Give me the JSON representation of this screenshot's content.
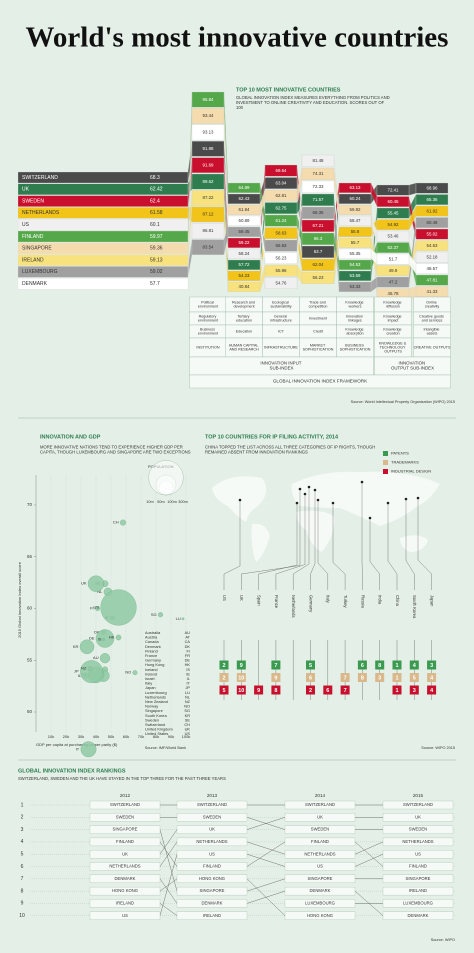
{
  "title": "World's most innovative countries",
  "index_chart": {
    "heading": "TOP 10 MOST INNOVATIVE COUNTRIES",
    "subheading": "GLOBAL INNOVATION INDEX MEASURES EVERYTHING FROM POLITICS AND INVESTMENT TO ONLINE CREATIVITY AND EDUCATION. SCORES OUT OF 100",
    "countries": [
      {
        "name": "SWITZERLAND",
        "score": 68.3,
        "color": "#4a4a4a"
      },
      {
        "name": "UK",
        "score": 62.42,
        "color": "#2f7d4f"
      },
      {
        "name": "SWEDEN",
        "score": 62.4,
        "color": "#c8102e"
      },
      {
        "name": "NETHERLANDS",
        "score": 61.58,
        "color": "#f2c318"
      },
      {
        "name": "US",
        "score": 60.1,
        "color": "#f0f0f0"
      },
      {
        "name": "FINLAND",
        "score": 59.97,
        "color": "#55a84a"
      },
      {
        "name": "SINGAPORE",
        "score": 59.36,
        "color": "#f4dcae"
      },
      {
        "name": "IRELAND",
        "score": 59.13,
        "color": "#f7e27e"
      },
      {
        "name": "LUXEMBOURG",
        "score": 59.02,
        "color": "#a0a0a0"
      },
      {
        "name": "DENMARK",
        "score": 57.7,
        "color": "#ffffff"
      }
    ],
    "pillars": [
      {
        "name": "INSTITUTION",
        "components": [
          "Political environment",
          "Regulatory environment",
          "Business environment"
        ],
        "values": [
          91.88,
          89.62,
          91.69,
          87.12,
          86.81,
          95.84,
          93.44,
          87.22,
          83.54,
          93.13
        ]
      },
      {
        "name": "HUMAN CAPITAL AND RESEARCH",
        "components": [
          "Research and development",
          "Tertiary education",
          "Education"
        ],
        "values": [
          62.43,
          57.72,
          59.22,
          54.23,
          58.24,
          64.89,
          61.94,
          40.84,
          59.45,
          60.89
        ]
      },
      {
        "name": "INFRASTRUCTURE",
        "components": [
          "Ecological sustainability",
          "General infrastructure",
          "ICT"
        ],
        "values": [
          63.04,
          62.75,
          69.54,
          58.63,
          54.76,
          61.24,
          62.81,
          55.96,
          56.93,
          56.23
        ]
      },
      {
        "name": "MARKET SOPHISTICATION",
        "components": [
          "Trade and competition",
          "Investment",
          "Credit"
        ],
        "values": [
          63.7,
          71.57,
          67.21,
          62.04,
          81.48,
          66.3,
          74.31,
          56.23,
          68.35,
          72.33
        ]
      },
      {
        "name": "BUSINESS SOPHISTICATION",
        "components": [
          "Knowledge workers",
          "Innovation linkages",
          "Knowledge absorption"
        ],
        "values": [
          60.24,
          53.59,
          63.13,
          55.8,
          58.47,
          54.53,
          59.82,
          55.7,
          53.33,
          55.35
        ]
      },
      {
        "name": "KNOWLEDGE & TECHNOLOGY OUTPUTS",
        "components": [
          "Knowledge diffusion",
          "Knowledge impact",
          "Knowledge creation"
        ],
        "values": [
          72.41,
          55.45,
          60.45,
          54.92,
          53.46,
          52.37,
          45.78,
          49.9,
          47.2,
          51.7
        ]
      },
      {
        "name": "CREATIVE OUTPUTS",
        "components": [
          "Online creativity",
          "Creative goods and services",
          "Intangible assets"
        ],
        "values": [
          68.96,
          65.36,
          55.02,
          61.92,
          52.18,
          47.81,
          41.33,
          54.63,
          60.48,
          48.57
        ]
      }
    ],
    "sub_indices": [
      "INNOVATION INPUT SUB-INDEX",
      "INNOVATION OUTPUT SUB-INDEX"
    ],
    "framework": "GLOBAL INNOVATION INDEX FRAMEWORK",
    "source": "Source: World Intellectual Property Organization (WIPO) 2015"
  },
  "gdp_chart": {
    "type": "scatter",
    "heading": "INNOVATION AND GDP",
    "subheading": "MORE INNOVATIVE NATIONS TEND TO EXPERIENCE HIGHER GDP PER CAPITA, THOUGH LUXEMBOURG AND SINGAPORE ARE TWO EXCEPTIONS",
    "x_label": "GDP per capita at purchasing power parity ($)",
    "y_label": "2015 Global Innovation Index overall score",
    "xlim": [
      0,
      100000
    ],
    "xticks": [
      {
        "value": 10000,
        "label": "10k"
      },
      {
        "value": 20000,
        "label": "20k"
      },
      {
        "value": 30000,
        "label": "30k"
      },
      {
        "value": 40000,
        "label": "40k"
      },
      {
        "value": 50000,
        "label": "50k"
      },
      {
        "value": 60000,
        "label": "60k"
      },
      {
        "value": 70000,
        "label": "70k"
      },
      {
        "value": 80000,
        "label": "80k"
      },
      {
        "value": 90000,
        "label": "90k"
      },
      {
        "value": 100000,
        "label": "100k"
      }
    ],
    "ylim": [
      50,
      70
    ],
    "yticks": [
      50,
      55,
      60,
      65,
      70
    ],
    "color": "#8fc9a3",
    "countries": [
      {
        "name": "Australia",
        "code": "AU",
        "gdp": 46000,
        "score": 55.2,
        "population": 24
      },
      {
        "name": "Austria",
        "code": "AT",
        "gdp": 46000,
        "score": 54.1,
        "population": 8.5
      },
      {
        "name": "Canada",
        "code": "CA",
        "gdp": 45000,
        "score": 53.5,
        "population": 35
      },
      {
        "name": "Denmark",
        "code": "DK",
        "gdp": 45000,
        "score": 57.7,
        "population": 5.6
      },
      {
        "name": "Finland",
        "code": "FI",
        "gdp": 41000,
        "score": 60,
        "population": 5.5
      },
      {
        "name": "France",
        "code": "FR",
        "gdp": 40000,
        "score": 53.6,
        "population": 66
      },
      {
        "name": "Germany",
        "code": "DE",
        "gdp": 46000,
        "score": 57.1,
        "population": 81
      },
      {
        "name": "Hong Kong",
        "code": "HK",
        "gdp": 55000,
        "score": 57.2,
        "population": 7
      },
      {
        "name": "Iceland",
        "code": "IS",
        "gdp": 45000,
        "score": 57,
        "population": 0.3
      },
      {
        "name": "Ireland",
        "code": "IE",
        "gdp": 51000,
        "score": 59.1,
        "population": 4.6
      },
      {
        "name": "Israel",
        "code": "IL",
        "gdp": 33000,
        "score": 53.5,
        "population": 8
      },
      {
        "name": "Italy",
        "code": "IT",
        "gdp": 35000,
        "score": 46.4,
        "population": 60
      },
      {
        "name": "Japan",
        "code": "JP",
        "gdp": 37000,
        "score": 53.9,
        "population": 127
      },
      {
        "name": "Luxembourg",
        "code": "LU",
        "gdp": 98000,
        "score": 59,
        "population": 0.5
      },
      {
        "name": "Netherlands",
        "code": "NL",
        "gdp": 48000,
        "score": 61.6,
        "population": 17
      },
      {
        "name": "New Zealand",
        "code": "NZ",
        "gdp": 36000,
        "score": 54.2,
        "population": 4.5
      },
      {
        "name": "Norway",
        "code": "NO",
        "gdp": 66000,
        "score": 53.8,
        "population": 5
      },
      {
        "name": "Singapore",
        "code": "SG",
        "gdp": 83000,
        "score": 59.4,
        "population": 5.5
      },
      {
        "name": "South Korea",
        "code": "KR",
        "gdp": 34000,
        "score": 56.3,
        "population": 50
      },
      {
        "name": "Sweden",
        "code": "SE",
        "gdp": 46000,
        "score": 62.4,
        "population": 10
      },
      {
        "name": "Switzerland",
        "code": "CH",
        "gdp": 58000,
        "score": 68.3,
        "population": 8
      },
      {
        "name": "United Kingdom",
        "code": "UK",
        "gdp": 40000,
        "score": 62.4,
        "population": 64
      },
      {
        "name": "United States",
        "code": "US",
        "gdp": 55000,
        "score": 60.1,
        "population": 320
      }
    ],
    "population_legend": {
      "title": "POPULATION",
      "sizes": [
        {
          "value": 10,
          "label": "10m"
        },
        {
          "value": 50,
          "label": "50m"
        },
        {
          "value": 100,
          "label": "100m"
        },
        {
          "value": 300,
          "label": "300m"
        }
      ]
    },
    "source": "Source: IMF/World Bank"
  },
  "ip_chart": {
    "heading": "TOP 10 COUNTRIES FOR IP FILING ACTIVITY, 2014",
    "subheading": "CHINA TOPPED THE LIST ACROSS ALL THREE CATEGORIES OF IP RIGHTS, THOUGH REMAINED ABSENT FROM INNOVATION RANKINGS",
    "countries": [
      "US",
      "UK",
      "Spain",
      "France",
      "Netherlands",
      "Germany",
      "Italy",
      "Turkey",
      "Russia",
      "India",
      "China",
      "South Korea",
      "Japan"
    ],
    "series": [
      {
        "name": "PATENTS",
        "color": "#3a9a4f",
        "ranks": [
          2,
          9,
          null,
          7,
          null,
          5,
          null,
          null,
          6,
          8,
          1,
          4,
          3
        ]
      },
      {
        "name": "TRADEMARKS",
        "color": "#d9b98c",
        "ranks": [
          2,
          10,
          null,
          9,
          null,
          6,
          null,
          7,
          8,
          3,
          1,
          5,
          4
        ]
      },
      {
        "name": "INDUSTRIAL DESIGN",
        "color": "#c8102e",
        "ranks": [
          5,
          10,
          9,
          8,
          null,
          2,
          6,
          7,
          null,
          null,
          1,
          3,
          4
        ]
      }
    ],
    "source": "Source: WIPO 2015"
  },
  "rankings": {
    "heading": "GLOBAL INNOVATION INDEX RANKINGS",
    "subheading": "SWITZERLAND, SWEDEN AND THE UK HAVE STAYED IN THE TOP THREE FOR THE PAST THREE YEARS",
    "years": [
      "2012",
      "2013",
      "2014",
      "2015"
    ],
    "ranks": [
      1,
      2,
      3,
      4,
      5,
      6,
      7,
      8,
      9,
      10
    ],
    "columns": [
      [
        "SWITZERLAND",
        "SWEDEN",
        "SINGAPORE",
        "FINLAND",
        "UK",
        "NETHERLANDS",
        "DENMARK",
        "HONG KONG",
        "IRELAND",
        "US"
      ],
      [
        "SWITZERLAND",
        "SWEDEN",
        "UK",
        "NETHERLANDS",
        "US",
        "FINLAND",
        "HONG KONG",
        "SINGAPORE",
        "DENMARK",
        "IRELAND"
      ],
      [
        "SWITZERLAND",
        "UK",
        "SWEDEN",
        "FINLAND",
        "NETHERLANDS",
        "US",
        "SINGAPORE",
        "DENMARK",
        "LUXEMBOURG",
        "HONG KONG"
      ],
      [
        "SWITZERLAND",
        "UK",
        "SWEDEN",
        "NETHERLANDS",
        "US",
        "FINLAND",
        "SINGAPORE",
        "IRELAND",
        "LUXEMBOURG",
        "DENMARK"
      ]
    ],
    "source": "Source: WIPO"
  }
}
